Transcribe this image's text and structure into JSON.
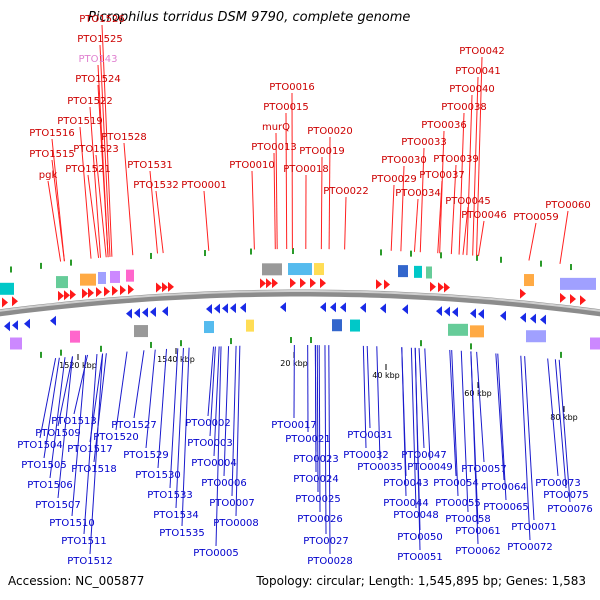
{
  "title": "Picrophilus torridus DSM 9790, complete genome",
  "footer": {
    "accession": "Accession: NC_005877",
    "summary": "Topology: circular; Length: 1,545,895 bp; Genes: 1,583"
  },
  "scale_labels": [
    "1520 kbp",
    "1540 kbp",
    "20 kbp",
    "40 kbp",
    "60 kbp",
    "80 kbp"
  ],
  "top_labels": [
    "PTO1526",
    "PTO1525",
    "PTO143",
    "PTO1524",
    "PTO1522",
    "PTO1519",
    "PTO1516",
    "PTO1523",
    "PTO1528",
    "PTO1515",
    "PTO1521",
    "pgk",
    "PTO1531",
    "PTO1532",
    "PTO0001",
    "PTO0016",
    "PTO0015",
    "murQ",
    "PTO0013",
    "PTO0020",
    "PTO0019",
    "PTO0010",
    "PTO0018",
    "PTO0022",
    "PTO0042",
    "PTO0041",
    "PTO0040",
    "PTO0038",
    "PTO0036",
    "PTO0033",
    "PTO0030",
    "PTO0039",
    "PTO0037",
    "PTO0029",
    "PTO0034",
    "PTO0045",
    "PTO0046",
    "PTO0059",
    "PTO0060"
  ],
  "bottom_labels": [
    "PTO1513",
    "PTO1509",
    "PTO1504",
    "PTO1517",
    "PTO1520",
    "PTO1527",
    "PTO1505",
    "PTO1518",
    "PTO1529",
    "PTO1506",
    "PTO1530",
    "PTO1507",
    "PTO1533",
    "PTO1534",
    "PTO1510",
    "PTO1511",
    "PTO1535",
    "PTO1512",
    "PTO0002",
    "PTO0003",
    "PTO0004",
    "PTO0006",
    "PTO0007",
    "PTO0008",
    "PTO0005",
    "PTO0017",
    "PTO0021",
    "PTO0023",
    "PTO0024",
    "PTO0025",
    "PTO0026",
    "PTO0027",
    "PTO0028",
    "PTO0031",
    "PTO0032",
    "PTO0035",
    "PTO0043",
    "PTO0047",
    "PTO0049",
    "PTO0044",
    "PTO0048",
    "PTO0050",
    "PTO0051",
    "PTO0054",
    "PTO0055",
    "PTO0058",
    "PTO0057",
    "PTO0061",
    "PTO0062",
    "PTO0064",
    "PTO0065",
    "PTO0071",
    "PTO0072",
    "PTO0073",
    "PTO0075",
    "PTO0076"
  ]
}
